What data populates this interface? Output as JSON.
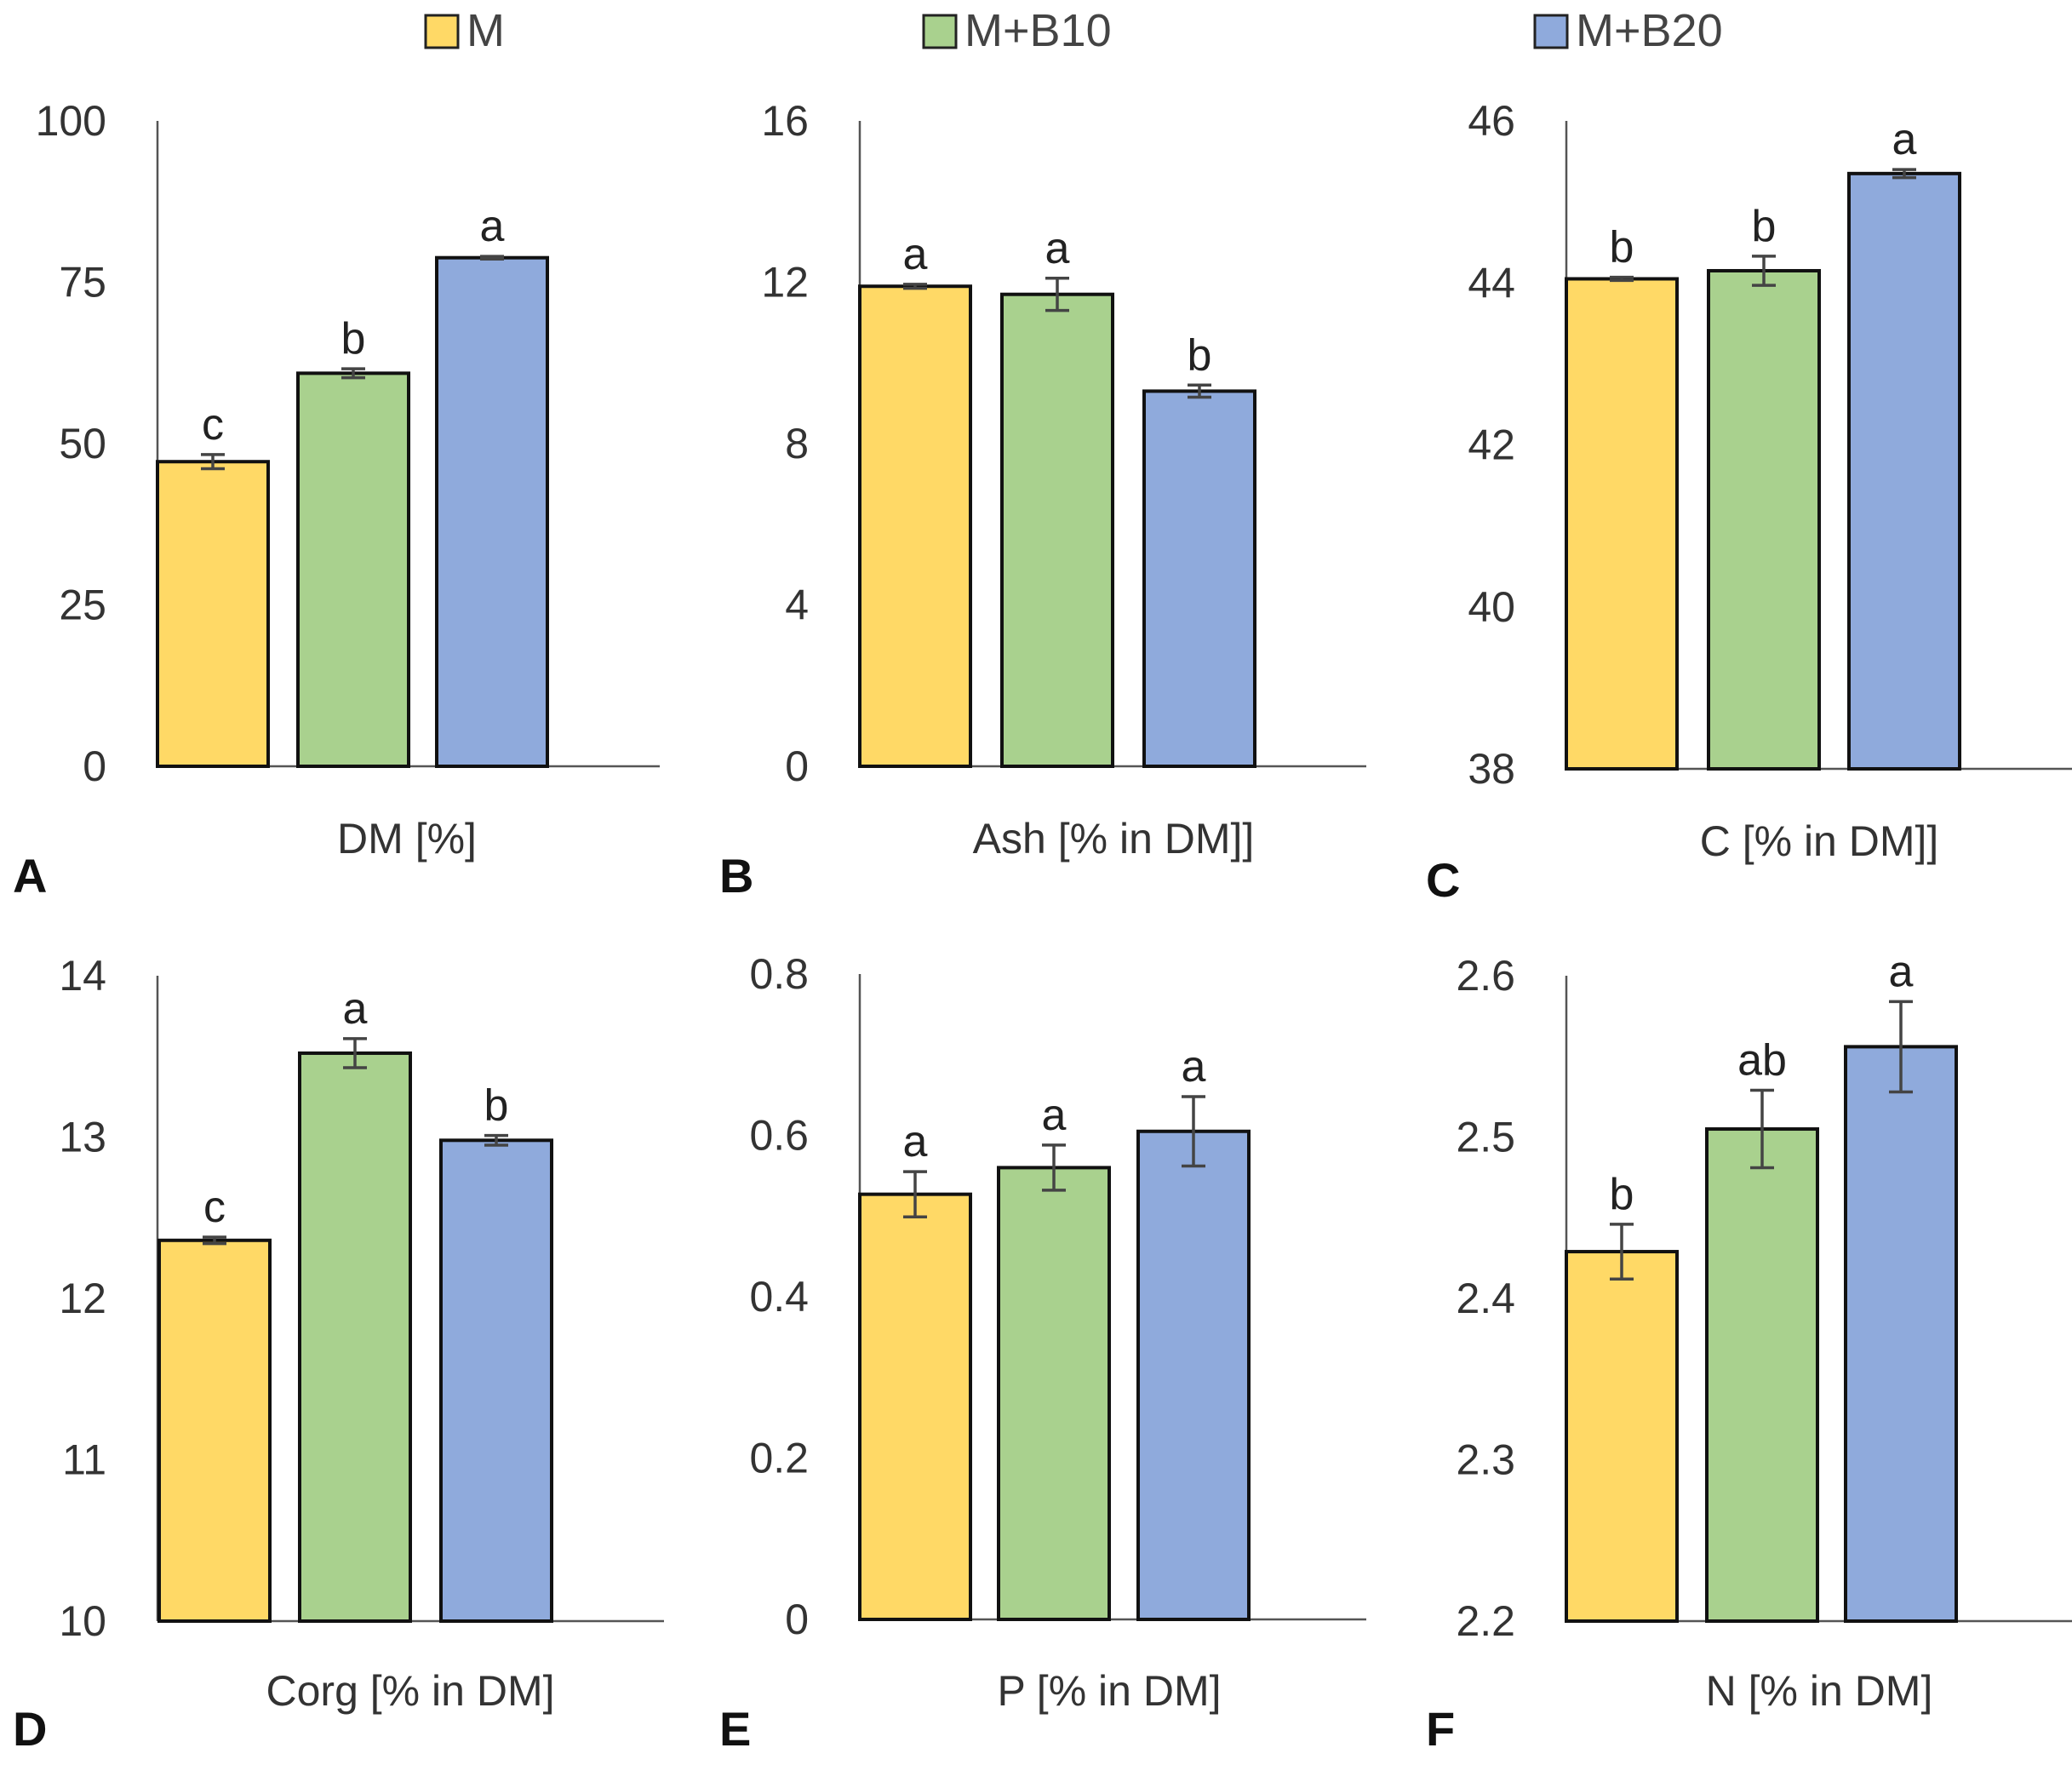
{
  "legend": {
    "items": [
      {
        "name": "M",
        "color": "#FFD966"
      },
      {
        "name": "M+B10",
        "color": "#A9D18E"
      },
      {
        "name": "M+B20",
        "color": "#8FAADC"
      }
    ]
  },
  "chart_data": [
    {
      "panel": "A",
      "type": "bar",
      "xlabel": "DM [%]",
      "ylim": [
        0,
        100
      ],
      "yticks": [
        "0",
        "25",
        "50",
        "75",
        "100"
      ],
      "categories": [
        "M",
        "M+B10",
        "M+B20"
      ],
      "values": [
        47.2,
        60.9,
        78.8
      ],
      "errors": [
        1.1,
        0.7,
        0.2
      ],
      "letters": [
        "c",
        "b",
        "a"
      ]
    },
    {
      "panel": "B",
      "type": "bar",
      "xlabel": "Ash [% in DM]]",
      "ylim": [
        0,
        16
      ],
      "yticks": [
        "0",
        "4",
        "8",
        "12",
        "16"
      ],
      "categories": [
        "M",
        "M+B10",
        "M+B20"
      ],
      "values": [
        11.9,
        11.7,
        9.3
      ],
      "errors": [
        0.05,
        0.4,
        0.15
      ],
      "letters": [
        "a",
        "a",
        "b"
      ]
    },
    {
      "panel": "C",
      "type": "bar",
      "xlabel": "C [% in DM]]",
      "ylim": [
        38,
        46
      ],
      "yticks": [
        "38",
        "40",
        "42",
        "44",
        "46"
      ],
      "categories": [
        "M",
        "M+B10",
        "M+B20"
      ],
      "values": [
        44.05,
        44.15,
        45.35
      ],
      "errors": [
        0.02,
        0.18,
        0.05
      ],
      "letters": [
        "b",
        "b",
        "a"
      ]
    },
    {
      "panel": "D",
      "type": "bar",
      "xlabel": "Corg [% in DM]",
      "ylim": [
        10,
        14
      ],
      "yticks": [
        "10",
        "11",
        "12",
        "13",
        "14"
      ],
      "categories": [
        "M",
        "M+B10",
        "M+B20"
      ],
      "values": [
        12.36,
        13.52,
        12.98
      ],
      "errors": [
        0.02,
        0.09,
        0.03
      ],
      "letters": [
        "c",
        "a",
        "b"
      ]
    },
    {
      "panel": "E",
      "type": "bar",
      "xlabel": "P [% in DM]",
      "ylim": [
        0,
        0.8
      ],
      "yticks": [
        "0",
        "0.2",
        "0.4",
        "0.6",
        "0.8"
      ],
      "categories": [
        "M",
        "M+B10",
        "M+B20"
      ],
      "values": [
        0.527,
        0.56,
        0.605
      ],
      "errors": [
        0.028,
        0.028,
        0.043
      ],
      "letters": [
        "a",
        "a",
        "a"
      ]
    },
    {
      "panel": "F",
      "type": "bar",
      "xlabel": "N [% in DM]",
      "ylim": [
        2.2,
        2.6
      ],
      "yticks": [
        "2.2",
        "2.3",
        "2.4",
        "2.5",
        "2.6"
      ],
      "categories": [
        "M",
        "M+B10",
        "M+B20"
      ],
      "values": [
        2.429,
        2.505,
        2.556
      ],
      "errors": [
        0.017,
        0.024,
        0.028
      ],
      "letters": [
        "b",
        "ab",
        "a"
      ]
    }
  ]
}
